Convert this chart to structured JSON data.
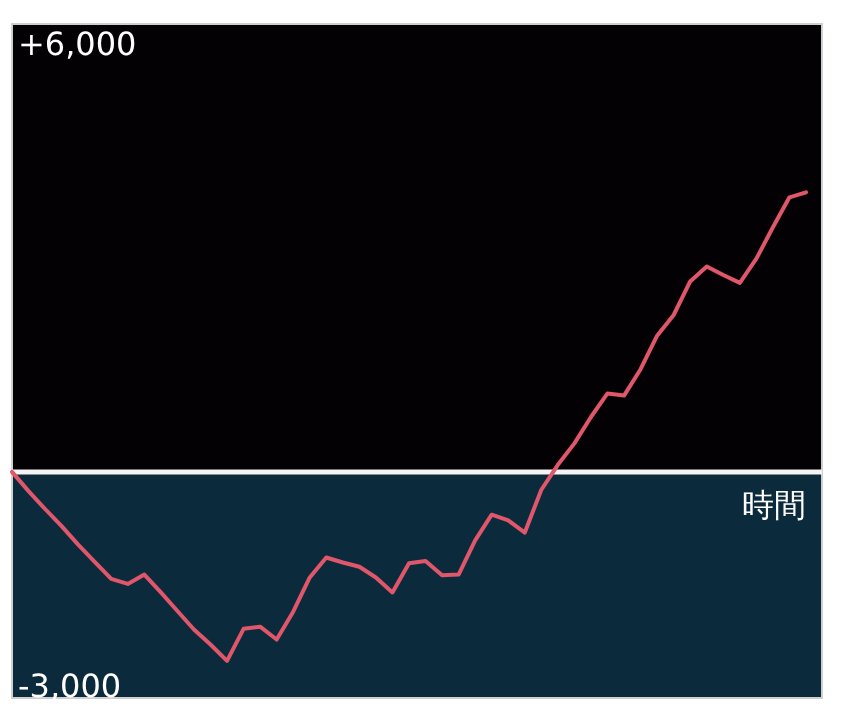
{
  "chart_data": {
    "type": "line",
    "xlabel": "時間",
    "categories": [
      null,
      null,
      null,
      null,
      null,
      null,
      null,
      null,
      null,
      null,
      null,
      null,
      null,
      null,
      null,
      null,
      null,
      null,
      null,
      null,
      null,
      null,
      null,
      null,
      null,
      null,
      null,
      null,
      null,
      null,
      null,
      null,
      null,
      null,
      null,
      null,
      null,
      null,
      null,
      null,
      null,
      null,
      null,
      null,
      null,
      null,
      null,
      null,
      null
    ],
    "series": [
      {
        "color": "#e0566a",
        "values": [
          0,
          -270,
          -520,
          -760,
          -1020,
          -1260,
          -1500,
          -1570,
          -1440,
          -1690,
          -1950,
          -2210,
          -2420,
          -2650,
          -2200,
          -2170,
          -2350,
          -1960,
          -1480,
          -1200,
          -1270,
          -1330,
          -1480,
          -1690,
          -1280,
          -1250,
          -1450,
          -1440,
          -960,
          -600,
          -680,
          -850,
          -250,
          100,
          400,
          770,
          1100,
          1070,
          1440,
          1910,
          2200,
          2670,
          2880,
          2760,
          2650,
          2990,
          3430,
          3850,
          3920
        ]
      }
    ],
    "ylim": [
      -3170,
      6280
    ],
    "yticks": [
      {
        "value": 6000,
        "label": "+6,000"
      },
      {
        "value": -3000,
        "label": "-3,000"
      }
    ],
    "bands": [
      {
        "axis": "y",
        "from": 0,
        "to": 6280,
        "color": "#040104"
      },
      {
        "axis": "y",
        "from": -3170,
        "to": 0,
        "color": "#0b2b3c"
      }
    ],
    "ref_lines": [
      {
        "axis": "y",
        "value": 0,
        "color": "#f4f4f4"
      }
    ],
    "line_style": "solid"
  }
}
